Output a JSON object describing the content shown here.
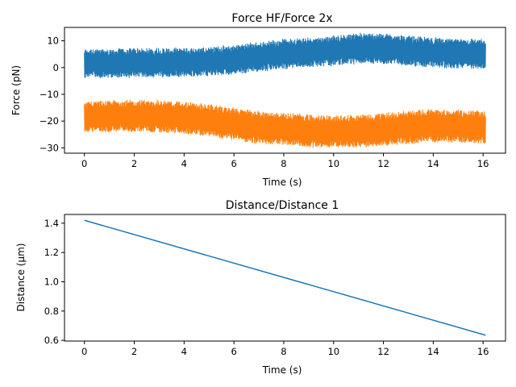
{
  "chart_data": [
    {
      "type": "line",
      "title": "Force HF/Force 2x",
      "xlabel": "Time (s)",
      "ylabel": "Force (pN)",
      "xlim": [
        -0.8,
        16.9
      ],
      "ylim": [
        -32,
        15
      ],
      "xticks": [
        0,
        2,
        4,
        6,
        8,
        10,
        12,
        14,
        16
      ],
      "yticks": [
        -30,
        -20,
        -10,
        0,
        10
      ],
      "xtick_labels": [
        "0",
        "2",
        "4",
        "6",
        "8",
        "10",
        "12",
        "14",
        "16"
      ],
      "ytick_labels": [
        "−30",
        "−20",
        "−10",
        "0",
        "10"
      ],
      "grid": false,
      "series": [
        {
          "color": "#1f77b4",
          "style": "noisy band",
          "x": [
            0,
            1,
            2,
            3,
            4,
            5,
            6,
            7,
            8,
            9,
            10,
            11,
            12,
            13,
            14,
            15,
            16.1
          ],
          "mean": [
            1.5,
            1.6,
            1.8,
            1.9,
            1.8,
            2.2,
            3.0,
            4.0,
            5.0,
            5.6,
            6.3,
            7.2,
            7.0,
            6.3,
            5.6,
            5.2,
            5.0
          ],
          "spread": [
            5.2,
            5.2,
            5.3,
            5.3,
            5.3,
            5.3,
            5.3,
            5.4,
            5.4,
            5.4,
            5.4,
            5.5,
            5.5,
            5.4,
            5.4,
            5.4,
            5.4
          ]
        },
        {
          "color": "#ff7f0e",
          "style": "noisy band",
          "x": [
            0,
            1,
            2,
            3,
            4,
            5,
            6,
            7,
            8,
            9,
            10,
            11,
            12,
            13,
            14,
            15,
            16.1
          ],
          "mean": [
            -18.3,
            -18.2,
            -18.0,
            -18.2,
            -18.7,
            -19.8,
            -21.2,
            -22.4,
            -23.0,
            -23.6,
            -24.0,
            -23.7,
            -23.2,
            -22.3,
            -21.8,
            -21.9,
            -22.5
          ],
          "spread": [
            5.7,
            5.7,
            5.8,
            5.8,
            5.8,
            5.8,
            5.9,
            5.9,
            5.9,
            6.0,
            6.0,
            6.0,
            6.0,
            6.0,
            6.0,
            6.0,
            6.0
          ]
        }
      ]
    },
    {
      "type": "line",
      "title": "Distance/Distance 1",
      "xlabel": "Time (s)",
      "ylabel": "Distance (μm)",
      "xlim": [
        -0.8,
        16.9
      ],
      "ylim": [
        0.595,
        1.46
      ],
      "xticks": [
        0,
        2,
        4,
        6,
        8,
        10,
        12,
        14,
        16
      ],
      "yticks": [
        0.6,
        0.8,
        1.0,
        1.2,
        1.4
      ],
      "xtick_labels": [
        "0",
        "2",
        "4",
        "6",
        "8",
        "10",
        "12",
        "14",
        "16"
      ],
      "ytick_labels": [
        "0.6",
        "0.8",
        "1.0",
        "1.2",
        "1.4"
      ],
      "grid": false,
      "series": [
        {
          "color": "#1f77b4",
          "x": [
            0,
            16.1
          ],
          "y": [
            1.42,
            0.635
          ]
        }
      ]
    }
  ]
}
